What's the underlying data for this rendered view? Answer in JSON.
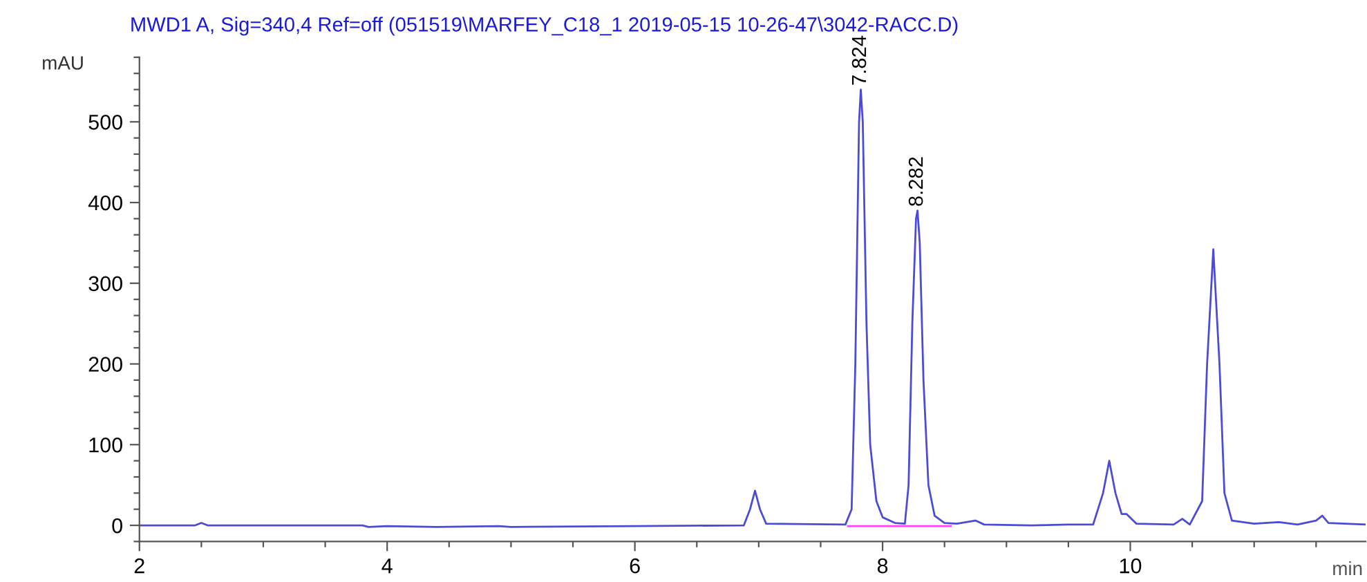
{
  "chart_data": {
    "type": "line",
    "title": "MWD1 A, Sig=340,4 Ref=off (051519\\MARFEY_C18_1 2019-05-15 10-26-47\\3042-RACC.D)",
    "xlabel": "min",
    "ylabel": "mAU",
    "xlim": [
      2,
      11.9
    ],
    "ylim": [
      -20,
      580
    ],
    "xticks": [
      2,
      {
        "value": 2.5,
        "label": null
      },
      {
        "value": 3,
        "label": null
      },
      {
        "value": 3.5,
        "label": null
      },
      4,
      {
        "value": 4.5,
        "label": null
      },
      {
        "value": 5,
        "label": null
      },
      {
        "value": 5.5,
        "label": null
      },
      6,
      {
        "value": 6.5,
        "label": null
      },
      {
        "value": 7,
        "label": null
      },
      {
        "value": 7.5,
        "label": null
      },
      8,
      {
        "value": 8.5,
        "label": null
      },
      {
        "value": 9,
        "label": null
      },
      {
        "value": 9.5,
        "label": null
      },
      10,
      {
        "value": 10.5,
        "label": null
      },
      {
        "value": 11,
        "label": null
      },
      {
        "value": 11.5,
        "label": null
      }
    ],
    "yticks": [
      {
        "value": -20,
        "label": null
      },
      0,
      {
        "value": 20,
        "label": null
      },
      {
        "value": 40,
        "label": null
      },
      {
        "value": 60,
        "label": null
      },
      {
        "value": 80,
        "label": null
      },
      100,
      {
        "value": 120,
        "label": null
      },
      {
        "value": 140,
        "label": null
      },
      {
        "value": 160,
        "label": null
      },
      {
        "value": 180,
        "label": null
      },
      200,
      {
        "value": 220,
        "label": null
      },
      {
        "value": 240,
        "label": null
      },
      {
        "value": 260,
        "label": null
      },
      {
        "value": 280,
        "label": null
      },
      300,
      {
        "value": 320,
        "label": null
      },
      {
        "value": 340,
        "label": null
      },
      {
        "value": 360,
        "label": null
      },
      {
        "value": 380,
        "label": null
      },
      400,
      {
        "value": 420,
        "label": null
      },
      {
        "value": 440,
        "label": null
      },
      {
        "value": 460,
        "label": null
      },
      {
        "value": 480,
        "label": null
      },
      500,
      {
        "value": 520,
        "label": null
      },
      {
        "value": 540,
        "label": null
      },
      {
        "value": 560,
        "label": null
      },
      {
        "value": 580,
        "label": null
      }
    ],
    "series": [
      {
        "color": "#4b4bd6",
        "x": [
          2.0,
          2.45,
          2.5,
          2.55,
          3.8,
          3.85,
          4.0,
          4.4,
          4.9,
          5.0,
          6.0,
          6.88,
          6.93,
          6.97,
          7.01,
          7.06,
          7.7,
          7.75,
          7.78,
          7.81,
          7.824,
          7.84,
          7.87,
          7.9,
          7.95,
          8.0,
          8.1,
          8.18,
          8.21,
          8.24,
          8.27,
          8.282,
          8.3,
          8.33,
          8.37,
          8.42,
          8.5,
          8.6,
          8.75,
          8.82,
          9.2,
          9.5,
          9.7,
          9.78,
          9.83,
          9.88,
          9.93,
          9.97,
          10.05,
          10.35,
          10.42,
          10.48,
          10.58,
          10.62,
          10.67,
          10.72,
          10.76,
          10.82,
          11.0,
          11.2,
          11.35,
          11.5,
          11.55,
          11.6,
          11.9
        ],
        "values": [
          0,
          0,
          3,
          0,
          0,
          -2,
          -1,
          -2,
          -1,
          -2,
          -1,
          0,
          20,
          43,
          20,
          2,
          1,
          20,
          200,
          500,
          540,
          500,
          250,
          100,
          30,
          10,
          3,
          2,
          50,
          250,
          380,
          390,
          350,
          180,
          50,
          12,
          3,
          2,
          6,
          1,
          0,
          1,
          1,
          40,
          80,
          40,
          14,
          14,
          2,
          1,
          8,
          1,
          30,
          200,
          342,
          200,
          40,
          6,
          2,
          4,
          1,
          6,
          12,
          3,
          1
        ]
      },
      {
        "color": "#ff40ff",
        "x": [
          7.72,
          8.17,
          8.55
        ],
        "values": [
          -1,
          -1,
          -1
        ]
      }
    ],
    "annotations": [
      {
        "text": "7.824",
        "x": 7.824,
        "y": 540
      },
      {
        "text": "8.282",
        "x": 8.282,
        "y": 390
      }
    ]
  }
}
